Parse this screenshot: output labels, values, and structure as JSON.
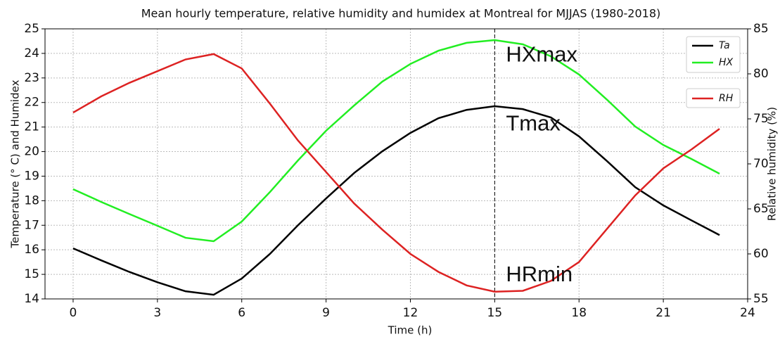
{
  "chart_data": {
    "type": "line",
    "title": "Mean hourly temperature, relative humidity and humidex at Montreal for MJJAS (1980-2018)",
    "x_label": "Time (h)",
    "y_label": "Temperature (° C) and Humidex",
    "y2_label": "Relative humidity (%)",
    "x": [
      0,
      1,
      2,
      3,
      4,
      5,
      6,
      7,
      8,
      9,
      10,
      11,
      12,
      13,
      14,
      15,
      16,
      17,
      18,
      19,
      20,
      21,
      22,
      23
    ],
    "series": [
      {
        "name": "Ta",
        "color": "#000000",
        "values": [
          16.06,
          15.57,
          15.1,
          14.68,
          14.31,
          14.17,
          14.83,
          15.83,
          17.0,
          18.09,
          19.13,
          20.01,
          20.76,
          21.36,
          21.7,
          21.85,
          21.73,
          21.39,
          20.62,
          19.61,
          18.55,
          17.81,
          17.2,
          16.6
        ]
      },
      {
        "name": "HX",
        "color": "#22ee22",
        "values": [
          18.47,
          17.95,
          17.46,
          16.98,
          16.49,
          16.35,
          17.15,
          18.35,
          19.64,
          20.85,
          21.88,
          22.85,
          23.57,
          24.11,
          24.43,
          24.54,
          24.37,
          23.88,
          23.14,
          22.11,
          21.02,
          20.27,
          19.7,
          19.1
        ]
      },
      {
        "name": "RH",
        "color": "#dd2222",
        "axis": "y2",
        "values": [
          75.7,
          77.5,
          79.0,
          80.3,
          81.6,
          82.2,
          80.6,
          76.7,
          72.6,
          69.1,
          65.6,
          62.7,
          60.0,
          58.0,
          56.5,
          55.8,
          55.9,
          57.0,
          59.1,
          62.8,
          66.5,
          69.5,
          71.6,
          73.9
        ]
      }
    ],
    "xlim": [
      -1,
      24
    ],
    "xticks": [
      0,
      3,
      6,
      9,
      12,
      15,
      18,
      21,
      24
    ],
    "ylim": [
      14,
      25
    ],
    "yticks": [
      14,
      15,
      16,
      17,
      18,
      19,
      20,
      21,
      22,
      23,
      24,
      25
    ],
    "y2lim": [
      55,
      85
    ],
    "y2ticks": [
      55,
      60,
      65,
      70,
      75,
      80,
      85
    ],
    "grid": true,
    "legend": "upper right",
    "vline": 15,
    "annotations": [
      {
        "text": "HXmax",
        "x": 15,
        "y": 23.9
      },
      {
        "text": "Tmax",
        "x": 15,
        "y": 21.1
      },
      {
        "text": "HRmin",
        "x": 15,
        "y": 14.95
      }
    ]
  }
}
